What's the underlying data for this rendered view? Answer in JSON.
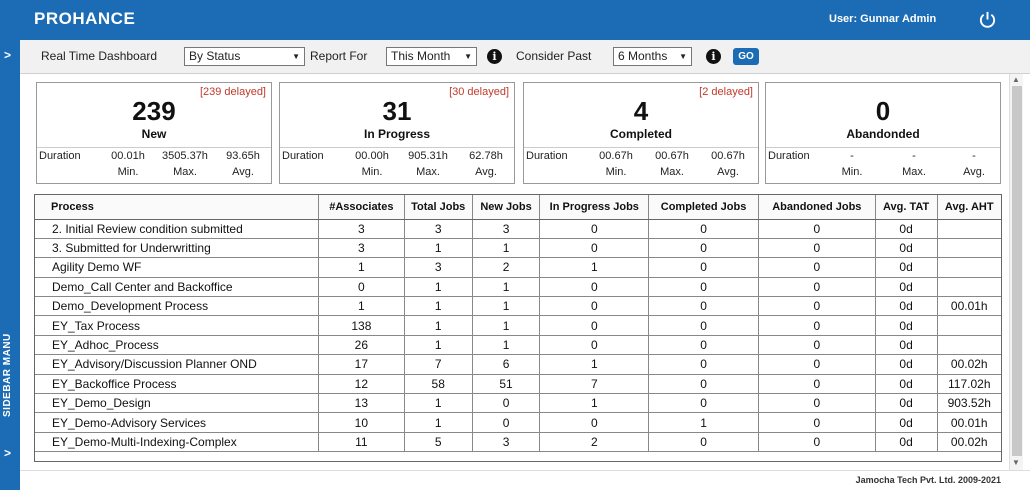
{
  "app": {
    "brand": "PROHANCE",
    "user": "User: Gunnar Admin",
    "power_icon": "power-icon"
  },
  "sidebar": {
    "label": "SIDEBAR MANU",
    "expand_glyph": ">"
  },
  "filters": {
    "dashboard_label": "Real Time Dashboard",
    "dashboard_value": "By Status",
    "report_label": "Report For",
    "report_value": "This Month",
    "past_label": "Consider Past",
    "past_value": "6 Months",
    "go_label": "GO",
    "info_glyph": "i"
  },
  "cards": [
    {
      "delayed": "[239 delayed]",
      "count": "239",
      "status": "New",
      "duration_label": "Duration",
      "min": "00.01h",
      "max": "3505.37h",
      "avg": "93.65h",
      "min_label": "Min.",
      "max_label": "Max.",
      "avg_label": "Avg."
    },
    {
      "delayed": "[30 delayed]",
      "count": "31",
      "status": "In Progress",
      "duration_label": "Duration",
      "min": "00.00h",
      "max": "905.31h",
      "avg": "62.78h",
      "min_label": "Min.",
      "max_label": "Max.",
      "avg_label": "Avg."
    },
    {
      "delayed": "[2 delayed]",
      "count": "4",
      "status": "Completed",
      "duration_label": "Duration",
      "min": "00.67h",
      "max": "00.67h",
      "avg": "00.67h",
      "min_label": "Min.",
      "max_label": "Max.",
      "avg_label": "Avg."
    },
    {
      "delayed": "",
      "count": "0",
      "status": "Abandonded",
      "duration_label": "Duration",
      "min": "-",
      "max": "-",
      "avg": "-",
      "min_label": "Min.",
      "max_label": "Max.",
      "avg_label": "Avg."
    }
  ],
  "table": {
    "headers": [
      "Process",
      "#Associates",
      "Total Jobs",
      "New Jobs",
      "In Progress Jobs",
      "Completed Jobs",
      "Abandoned Jobs",
      "Avg. TAT",
      "Avg. AHT"
    ],
    "rows": [
      [
        "2. Initial Review condition submitted",
        "3",
        "3",
        "3",
        "0",
        "0",
        "0",
        "0d",
        ""
      ],
      [
        "3. Submitted for Underwritting",
        "3",
        "1",
        "1",
        "0",
        "0",
        "0",
        "0d",
        ""
      ],
      [
        "Agility Demo WF",
        "1",
        "3",
        "2",
        "1",
        "0",
        "0",
        "0d",
        ""
      ],
      [
        "Demo_Call Center and Backoffice",
        "0",
        "1",
        "1",
        "0",
        "0",
        "0",
        "0d",
        ""
      ],
      [
        "Demo_Development Process",
        "1",
        "1",
        "1",
        "0",
        "0",
        "0",
        "0d",
        "00.01h"
      ],
      [
        "EY_Tax Process",
        "138",
        "1",
        "1",
        "0",
        "0",
        "0",
        "0d",
        ""
      ],
      [
        "EY_Adhoc_Process",
        "26",
        "1",
        "1",
        "0",
        "0",
        "0",
        "0d",
        ""
      ],
      [
        "EY_Advisory/Discussion Planner OND",
        "17",
        "7",
        "6",
        "1",
        "0",
        "0",
        "0d",
        "00.02h"
      ],
      [
        "EY_Backoffice Process",
        "12",
        "58",
        "51",
        "7",
        "0",
        "0",
        "0d",
        "117.02h"
      ],
      [
        "EY_Demo_Design",
        "13",
        "1",
        "0",
        "1",
        "0",
        "0",
        "0d",
        "903.52h"
      ],
      [
        "EY_Demo-Advisory Services",
        "10",
        "1",
        "0",
        "0",
        "1",
        "0",
        "0d",
        "00.01h"
      ],
      [
        "EY_Demo-Multi-Indexing-Complex",
        "11",
        "5",
        "3",
        "2",
        "0",
        "0",
        "0d",
        "00.02h"
      ]
    ]
  },
  "footer": "Jamocha Tech Pvt. Ltd. 2009-2021"
}
